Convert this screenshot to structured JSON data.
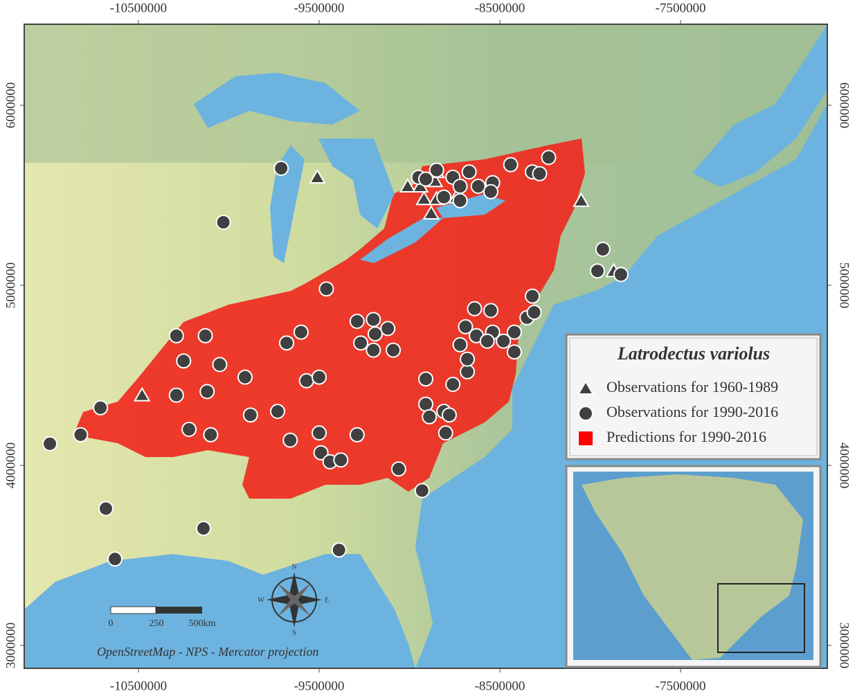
{
  "map": {
    "xlim": [
      -11132000,
      -6688000
    ],
    "ylim": [
      2873000,
      6450000
    ],
    "xticks": [
      -10500000,
      -9500000,
      -8500000,
      -7500000
    ],
    "yticks": [
      3000000,
      4000000,
      5000000,
      6000000
    ],
    "legend_title": "Latrodectus variolus",
    "series": [
      {
        "name": "Observations for 1960-1989",
        "marker": "triangle",
        "color": "#404040",
        "x": [
          -9510000,
          -9010000,
          -10480000,
          -8050000,
          -7870000,
          -8940000,
          -8860000,
          -8920000,
          -8850000,
          -8880000,
          -8850000,
          -8740000
        ],
        "y": [
          5600000,
          5550000,
          4390000,
          5470000,
          5080000,
          5550000,
          5580000,
          5480000,
          5480000,
          5400000,
          5630000,
          5490000
        ]
      },
      {
        "name": "Observations for 1990-2016",
        "marker": "circle",
        "color": "#404040",
        "x": [
          -9710000,
          -10030000,
          -9460000,
          -10290000,
          -10130000,
          -10250000,
          -10050000,
          -9910000,
          -10120000,
          -10290000,
          -9680000,
          -9600000,
          -9570000,
          -9500000,
          -10710000,
          -10820000,
          -10990000,
          -10220000,
          -10100000,
          -9880000,
          -9730000,
          -9660000,
          -9500000,
          -9490000,
          -9440000,
          -9380000,
          -9290000,
          -10680000,
          -10140000,
          -10630000,
          -9390000,
          -9060000,
          -8930000,
          -9290000,
          -9200000,
          -9120000,
          -9270000,
          -9190000,
          -9090000,
          -9200000,
          -8910000,
          -8760000,
          -8680000,
          -8680000,
          -8690000,
          -8640000,
          -8550000,
          -8720000,
          -8630000,
          -8540000,
          -8570000,
          -8480000,
          -8420000,
          -8420000,
          -8320000,
          -8350000,
          -8310000,
          -8910000,
          -8890000,
          -8810000,
          -8780000,
          -8800000,
          -8950000,
          -8850000,
          -8760000,
          -8670000,
          -8720000,
          -8620000,
          -8540000,
          -8440000,
          -8320000,
          -8280000,
          -8230000,
          -8810000,
          -8720000,
          -8550000,
          -7930000,
          -7960000,
          -7830000,
          -8910000
        ],
        "y": [
          5650000,
          5350000,
          4980000,
          4720000,
          4720000,
          4580000,
          4560000,
          4490000,
          4410000,
          4390000,
          4680000,
          4740000,
          4470000,
          4490000,
          4320000,
          4170000,
          4120000,
          4200000,
          4170000,
          4280000,
          4300000,
          4140000,
          4180000,
          4070000,
          4020000,
          4030000,
          4170000,
          3760000,
          3650000,
          3480000,
          3530000,
          3980000,
          3860000,
          4800000,
          4810000,
          4760000,
          4680000,
          4730000,
          4640000,
          4640000,
          4480000,
          4450000,
          4520000,
          4590000,
          4770000,
          4870000,
          4860000,
          4670000,
          4720000,
          4740000,
          4690000,
          4690000,
          4740000,
          4630000,
          4940000,
          4820000,
          4850000,
          4340000,
          4270000,
          4300000,
          4280000,
          4180000,
          5600000,
          5640000,
          5600000,
          5630000,
          5550000,
          5550000,
          5570000,
          5670000,
          5630000,
          5620000,
          5710000,
          5490000,
          5470000,
          5520000,
          5200000,
          5080000,
          5060000,
          5590000
        ]
      },
      {
        "name": "Predictions for 1990-2016",
        "marker": "square",
        "color": "#ff0000"
      }
    ],
    "scale_bar": {
      "labels": [
        "0",
        "250",
        "500km"
      ]
    },
    "compass": {
      "n": "N",
      "e": "E",
      "s": "S",
      "w": "W"
    },
    "attribution": "OpenStreetMap - NPS - Mercator projection"
  }
}
